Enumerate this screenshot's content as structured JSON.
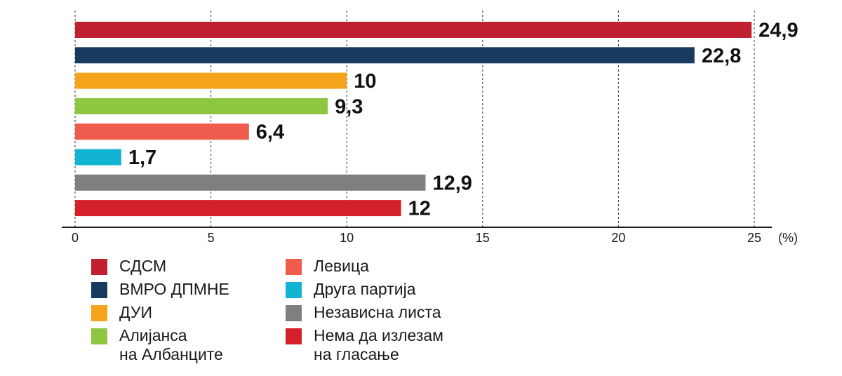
{
  "chart_data": {
    "type": "bar",
    "orientation": "horizontal",
    "categories": [
      "СДСМ",
      "ВМРО ДПМНЕ",
      "ДУИ",
      "Алијанса\nна Албанците",
      "Левица",
      "Друга партија",
      "Независна листа",
      "Нема да излезам\nна гласање"
    ],
    "values": [
      24.9,
      22.8,
      10,
      9.3,
      6.4,
      1.7,
      12.9,
      12
    ],
    "value_labels": [
      "24,9",
      "22,8",
      "10",
      "9,3",
      "6,4",
      "1,7",
      "12,9",
      "12"
    ],
    "colors": [
      "#c0202f",
      "#173a5e",
      "#f5a31a",
      "#8dc63f",
      "#ef5b4c",
      "#12b4d3",
      "#7f7f7f",
      "#d4202a"
    ],
    "xlim": [
      0,
      25
    ],
    "xticks": [
      "0",
      "5",
      "10",
      "15",
      "20",
      "25"
    ],
    "unit_label": "(%)",
    "grid": "vertical-dashed",
    "legend_placement": "bottom-left"
  }
}
